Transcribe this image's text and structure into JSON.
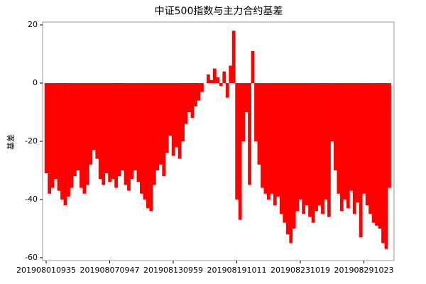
{
  "chart_data": {
    "type": "bar",
    "title": "中证500指数与主力合约基差",
    "y_label": "基差",
    "color": "#ff0000",
    "ylim": [
      -61,
      21
    ],
    "yticks": [
      -60,
      -40,
      -20,
      0,
      20
    ],
    "categories": [
      "201908010935",
      null,
      null,
      null,
      null,
      null,
      null,
      null,
      null,
      null,
      null,
      null,
      null,
      null,
      null,
      null,
      null,
      null,
      null,
      null,
      "201908070947",
      null,
      null,
      null,
      null,
      null,
      null,
      null,
      null,
      null,
      null,
      null,
      null,
      null,
      null,
      null,
      null,
      null,
      null,
      null,
      "201908130959",
      null,
      null,
      null,
      null,
      null,
      null,
      null,
      null,
      null,
      null,
      null,
      null,
      null,
      null,
      null,
      null,
      null,
      null,
      null,
      "201908191011",
      null,
      null,
      null,
      null,
      null,
      null,
      null,
      null,
      null,
      null,
      null,
      null,
      null,
      null,
      null,
      null,
      null,
      null,
      null,
      "201908231019",
      null,
      null,
      null,
      null,
      null,
      null,
      null,
      null,
      null,
      null,
      null,
      null,
      null,
      null,
      null,
      null,
      null,
      null,
      null,
      "201908291023",
      null,
      null,
      null,
      null,
      null,
      null,
      null,
      null
    ],
    "values": [
      -31,
      -38,
      -36,
      -33,
      -37,
      -40,
      -42,
      -39,
      -36,
      -32,
      -30,
      -36,
      -38,
      -35,
      -28,
      -23,
      -26,
      -33,
      -35,
      -31,
      -34,
      -33,
      -36,
      -32,
      -30,
      -35,
      -37,
      -33,
      -30,
      -34,
      -38,
      -40,
      -43,
      -44,
      -35,
      -30,
      -28,
      -32,
      -24,
      -18,
      -25,
      -22,
      -26,
      -20,
      -14,
      -10,
      -12,
      -8,
      -6,
      -3,
      0,
      3,
      1,
      5,
      2,
      -1,
      4,
      -5,
      6,
      18,
      -40,
      -47,
      -20,
      -10,
      -35,
      11,
      -20,
      -28,
      -36,
      -38,
      -40,
      -38,
      -42,
      -39,
      -45,
      -48,
      -52,
      -55,
      -50,
      -44,
      -40,
      -45,
      -42,
      -46,
      -48,
      -44,
      -42,
      -45,
      -40,
      -46,
      -20,
      -30,
      -38,
      -44,
      -40,
      -43,
      -37,
      -45,
      -41,
      -53,
      -38,
      -42,
      -45,
      -48,
      -49,
      -50,
      -55,
      -57,
      -36
    ]
  }
}
